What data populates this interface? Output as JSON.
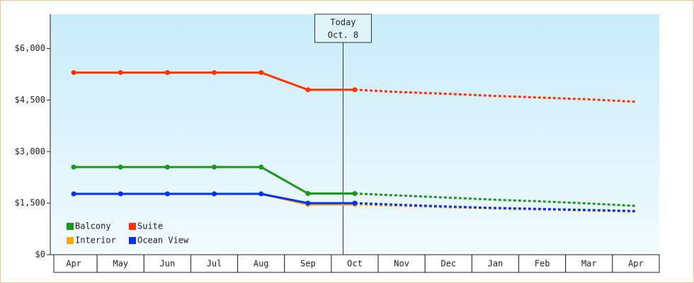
{
  "chart_data": {
    "type": "line",
    "categories": [
      "Apr",
      "May",
      "Jun",
      "Jul",
      "Aug",
      "Sep",
      "Oct",
      "Nov",
      "Dec",
      "Jan",
      "Feb",
      "Mar",
      "Apr"
    ],
    "series": [
      {
        "name": "Balcony",
        "color": "#1a9a1a",
        "values": [
          2550,
          2550,
          2550,
          2550,
          2550,
          1780,
          1780,
          null,
          null,
          null,
          null,
          null,
          null
        ],
        "forecast": [
          null,
          null,
          null,
          null,
          null,
          null,
          1780,
          1720,
          1660,
          1600,
          1550,
          1490,
          1420
        ]
      },
      {
        "name": "Suite",
        "color": "#ff3300",
        "values": [
          5300,
          5300,
          5300,
          5300,
          5300,
          4800,
          4800,
          null,
          null,
          null,
          null,
          null,
          null
        ],
        "forecast": [
          null,
          null,
          null,
          null,
          null,
          null,
          4800,
          4730,
          4680,
          4620,
          4570,
          4520,
          4450
        ]
      },
      {
        "name": "Interior",
        "color": "#ffa500",
        "values": [
          1770,
          1770,
          1770,
          1770,
          1770,
          1460,
          1460,
          null,
          null,
          null,
          null,
          null,
          null
        ],
        "forecast": [
          null,
          null,
          null,
          null,
          null,
          null,
          1460,
          1420,
          1380,
          1340,
          1310,
          1280,
          1250
        ]
      },
      {
        "name": "Ocean View",
        "color": "#0033ff",
        "values": [
          1770,
          1770,
          1770,
          1770,
          1770,
          1500,
          1500,
          null,
          null,
          null,
          null,
          null,
          null
        ],
        "forecast": [
          null,
          null,
          null,
          null,
          null,
          null,
          1500,
          1450,
          1400,
          1360,
          1330,
          1300,
          1270
        ]
      }
    ],
    "annotation": {
      "title": "Today",
      "date": "Oct. 8"
    },
    "ylim": [
      0,
      7000
    ],
    "yticks": [
      {
        "value": 0,
        "label": "$0"
      },
      {
        "value": 1500,
        "label": "$1,500"
      },
      {
        "value": 3000,
        "label": "$3,000"
      },
      {
        "value": 4500,
        "label": "$4,500"
      },
      {
        "value": 6000,
        "label": "$6,000"
      }
    ],
    "legend": "bottom-left"
  }
}
